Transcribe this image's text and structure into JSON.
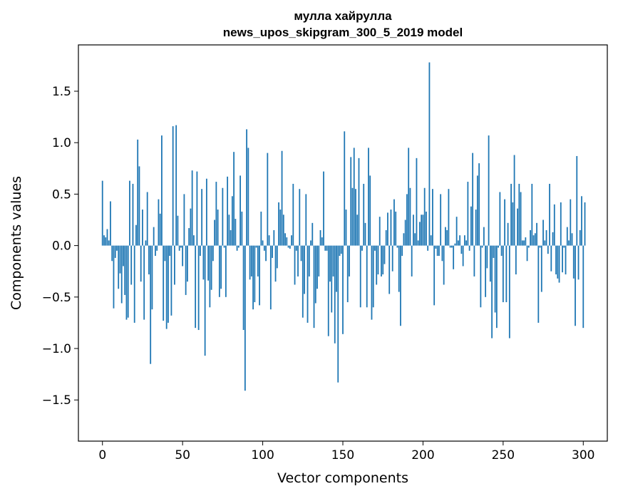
{
  "chart_data": {
    "type": "bar",
    "title_line1": "мулла хайрулла",
    "title_line2": "news_upos_skipgram_300_5_2019 model",
    "xlabel": "Vector components",
    "ylabel": "Components values",
    "xlim": [
      -15,
      315
    ],
    "ylim": [
      -1.9,
      1.95
    ],
    "xticks": [
      0,
      50,
      100,
      150,
      200,
      250,
      300
    ],
    "yticks": [
      -1.5,
      -1.0,
      -0.5,
      0.0,
      0.5,
      1.0,
      1.5
    ],
    "ytick_labels": [
      "−1.5",
      "−1.0",
      "−0.5",
      "0.0",
      "0.5",
      "1.0",
      "1.5"
    ],
    "xtick_labels": [
      "0",
      "50",
      "100",
      "150",
      "200",
      "250",
      "300"
    ],
    "bar_color": "#1f77b4",
    "grid": false,
    "values": [
      0.63,
      0.1,
      0.08,
      0.16,
      0.05,
      0.43,
      -0.15,
      -0.61,
      -0.12,
      -0.05,
      -0.42,
      -0.27,
      -0.56,
      -0.2,
      -0.48,
      -0.72,
      -0.7,
      0.63,
      -0.38,
      0.6,
      -0.75,
      0.2,
      1.03,
      0.77,
      -0.35,
      0.35,
      -0.72,
      0.05,
      0.52,
      -0.28,
      -1.15,
      -0.62,
      0.18,
      -0.1,
      -0.05,
      0.45,
      0.31,
      1.07,
      -0.73,
      -0.15,
      -0.81,
      -0.75,
      -0.1,
      -0.68,
      1.16,
      -0.38,
      1.17,
      0.29,
      -0.05,
      -0.02,
      -0.2,
      0.5,
      -0.48,
      -0.35,
      0.17,
      0.36,
      0.73,
      0.1,
      -0.8,
      0.72,
      -0.82,
      -0.1,
      0.55,
      -0.33,
      -1.07,
      0.65,
      -0.34,
      -0.6,
      -0.43,
      -0.15,
      0.25,
      0.62,
      0.35,
      -0.5,
      -0.42,
      0.56,
      -0.02,
      -0.5,
      0.67,
      0.3,
      0.15,
      0.48,
      0.91,
      0.26,
      -0.05,
      -0.02,
      0.68,
      0.33,
      -0.82,
      -1.41,
      1.13,
      0.95,
      -0.33,
      -0.3,
      -0.62,
      -0.55,
      -0.02,
      -0.3,
      -0.58,
      0.33,
      0.05,
      -0.05,
      -0.15,
      0.9,
      0.1,
      -0.62,
      -0.12,
      0.15,
      -0.35,
      -0.22,
      0.42,
      0.35,
      0.92,
      0.3,
      0.12,
      0.08,
      -0.02,
      -0.03,
      0.1,
      0.6,
      -0.38,
      -0.05,
      -0.3,
      0.55,
      -0.15,
      -0.7,
      -0.47,
      0.5,
      -0.75,
      -0.3,
      0.05,
      0.22,
      -0.8,
      -0.56,
      -0.42,
      -0.3,
      0.15,
      0.08,
      0.72,
      -0.05,
      -0.05,
      -0.88,
      -0.35,
      -0.65,
      -0.3,
      -0.95,
      -0.45,
      -1.33,
      -0.1,
      -0.08,
      -0.86,
      1.11,
      0.35,
      -0.55,
      -0.3,
      0.86,
      0.56,
      0.95,
      0.55,
      0.3,
      0.85,
      -0.6,
      -0.05,
      0.6,
      0.22,
      -0.6,
      0.95,
      0.68,
      -0.72,
      -0.6,
      -0.05,
      -0.38,
      -0.28,
      0.28,
      -0.3,
      -0.28,
      -0.18,
      0.15,
      0.32,
      -0.47,
      0.35,
      -0.25,
      0.45,
      0.33,
      -0.02,
      -0.45,
      -0.78,
      -0.1,
      0.12,
      0.25,
      0.5,
      0.95,
      0.56,
      -0.3,
      0.3,
      0.12,
      0.85,
      0.05,
      0.23,
      0.3,
      0.3,
      0.56,
      0.33,
      -0.05,
      1.78,
      0.1,
      0.55,
      -0.58,
      -0.03,
      -0.1,
      -0.1,
      0.5,
      -0.15,
      -0.38,
      0.18,
      0.15,
      0.55,
      -0.02,
      -0.02,
      -0.23,
      0.02,
      0.28,
      0.05,
      0.1,
      -0.08,
      -0.2,
      0.1,
      0.05,
      0.62,
      -0.05,
      0.38,
      0.9,
      -0.3,
      0.35,
      0.68,
      0.8,
      -0.6,
      -0.02,
      0.18,
      -0.5,
      -0.22,
      1.07,
      -0.35,
      -0.9,
      -0.12,
      -0.65,
      -0.8,
      -0.02,
      0.52,
      -0.1,
      -0.55,
      0.45,
      -0.55,
      0.22,
      -0.9,
      0.6,
      0.42,
      0.88,
      -0.28,
      0.36,
      0.6,
      0.52,
      0.05,
      0.05,
      0.08,
      -0.15,
      -0.02,
      0.15,
      0.6,
      0.1,
      0.12,
      0.22,
      -0.75,
      -0.02,
      -0.45,
      0.25,
      0.05,
      0.15,
      -0.08,
      0.6,
      -0.25,
      0.13,
      0.4,
      -0.28,
      -0.32,
      -0.36,
      0.42,
      -0.26,
      -0.02,
      -0.28,
      0.18,
      0.05,
      0.45,
      0.12,
      -0.32,
      -0.78,
      0.87,
      -0.33,
      0.15,
      0.48,
      -0.8,
      0.42
    ]
  }
}
